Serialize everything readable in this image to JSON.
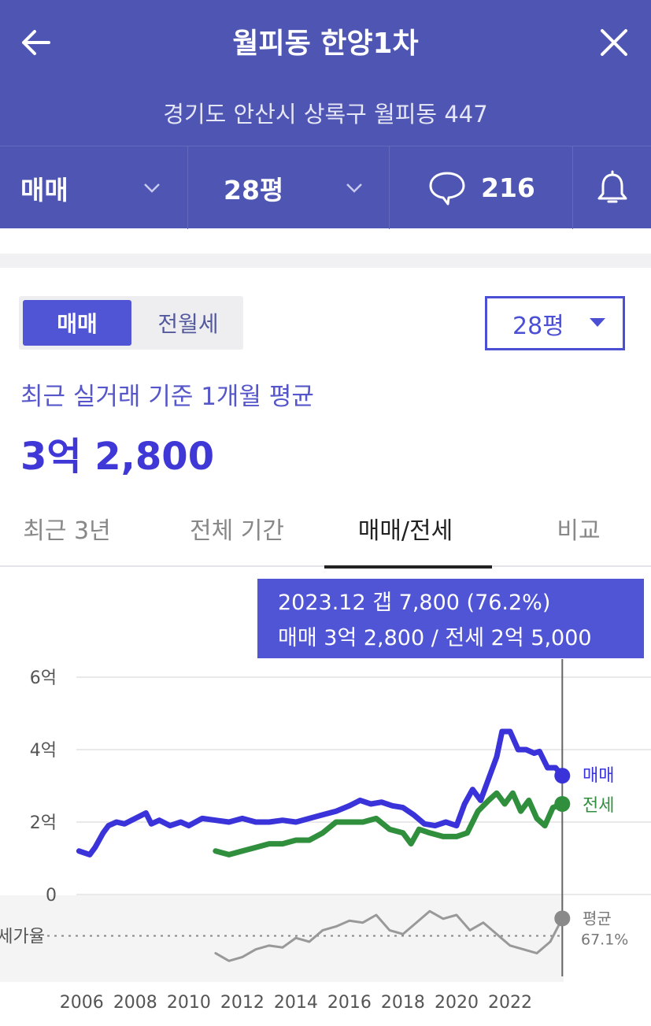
{
  "header": {
    "title": "월피동 한양1차",
    "address": "경기도 안산시 상록구 월피동 447",
    "back_icon": "arrow-left-icon",
    "close_icon": "close-icon"
  },
  "filters": {
    "deal_type": "매매",
    "size": "28평",
    "comment_count": "216",
    "comment_icon": "speech-bubble-icon",
    "alert_icon": "bell-icon"
  },
  "price_section": {
    "toggle": [
      "매매",
      "전월세"
    ],
    "toggle_selected": "매매",
    "size_select": "28평",
    "caption": "최근 실거래 기준 1개월 평균",
    "price": "3억 2,800"
  },
  "tabs": [
    {
      "label": "최근 3년",
      "active": false
    },
    {
      "label": "전체 기간",
      "active": false
    },
    {
      "label": "매매/전세",
      "active": true
    },
    {
      "label": "비교",
      "active": false
    }
  ],
  "tooltip": {
    "line1": "2023.12  갭 7,800 (76.2%)",
    "line2": "매매 3억 2,800 / 전세 2억 5,000"
  },
  "colors": {
    "header_bg": "#4f55b2",
    "accent": "#5055d6",
    "sale": "#3a33d9",
    "jeonse": "#2f8f3c",
    "ratio": "#999999"
  },
  "chart_data": {
    "type": "line",
    "y_ticks": [
      "6억",
      "4억",
      "2억",
      "0"
    ],
    "ylim": [
      0,
      6
    ],
    "x_ticks": [
      "2006",
      "2008",
      "2010",
      "2012",
      "2014",
      "2016",
      "2018",
      "2020",
      "2022"
    ],
    "xlim": [
      2005.8,
      2024.0
    ],
    "series": [
      {
        "name": "매매",
        "color": "#3a33d9",
        "x": [
          2005.9,
          2006.3,
          2006.5,
          2006.8,
          2007.0,
          2007.3,
          2007.6,
          2008.0,
          2008.4,
          2008.6,
          2008.9,
          2009.3,
          2009.7,
          2010.0,
          2010.5,
          2011.0,
          2011.5,
          2012.0,
          2012.5,
          2013.0,
          2013.5,
          2014.0,
          2014.5,
          2015.0,
          2015.5,
          2016.0,
          2016.4,
          2016.8,
          2017.2,
          2017.6,
          2018.0,
          2018.4,
          2018.8,
          2019.2,
          2019.6,
          2020.0,
          2020.3,
          2020.6,
          2020.9,
          2021.2,
          2021.5,
          2021.7,
          2022.0,
          2022.3,
          2022.6,
          2022.9,
          2023.1,
          2023.4,
          2023.7,
          2023.95
        ],
        "y": [
          1.2,
          1.1,
          1.3,
          1.7,
          1.9,
          2.0,
          1.95,
          2.1,
          2.25,
          1.95,
          2.05,
          1.9,
          2.0,
          1.9,
          2.1,
          2.05,
          2.0,
          2.1,
          2.0,
          2.0,
          2.05,
          2.0,
          2.1,
          2.2,
          2.3,
          2.45,
          2.6,
          2.5,
          2.55,
          2.45,
          2.4,
          2.2,
          1.95,
          1.9,
          2.0,
          1.9,
          2.5,
          2.9,
          2.6,
          3.2,
          3.8,
          4.5,
          4.5,
          4.0,
          4.0,
          3.9,
          3.95,
          3.5,
          3.5,
          3.28
        ]
      },
      {
        "name": "전세",
        "color": "#2f8f3c",
        "x": [
          2011.0,
          2011.5,
          2012.0,
          2012.5,
          2013.0,
          2013.5,
          2014.0,
          2014.5,
          2015.0,
          2015.5,
          2016.0,
          2016.5,
          2017.0,
          2017.5,
          2018.0,
          2018.3,
          2018.6,
          2019.0,
          2019.5,
          2020.0,
          2020.4,
          2020.8,
          2021.2,
          2021.5,
          2021.8,
          2022.1,
          2022.4,
          2022.7,
          2023.0,
          2023.3,
          2023.6,
          2023.95
        ],
        "y": [
          1.2,
          1.1,
          1.2,
          1.3,
          1.4,
          1.4,
          1.5,
          1.5,
          1.7,
          2.0,
          2.0,
          2.0,
          2.1,
          1.8,
          1.7,
          1.4,
          1.8,
          1.7,
          1.6,
          1.6,
          1.7,
          2.3,
          2.6,
          2.8,
          2.5,
          2.8,
          2.3,
          2.6,
          2.1,
          1.9,
          2.4,
          2.5
        ]
      },
      {
        "name": "전세가율",
        "color": "#999999",
        "x": [
          2011.0,
          2011.5,
          2012.0,
          2012.5,
          2013.0,
          2013.5,
          2014.0,
          2014.5,
          2015.0,
          2015.5,
          2016.0,
          2016.5,
          2017.0,
          2017.5,
          2018.0,
          2018.5,
          2019.0,
          2019.5,
          2020.0,
          2020.5,
          2021.0,
          2021.5,
          2022.0,
          2022.5,
          2023.0,
          2023.5,
          2023.95
        ],
        "y": [
          58,
          54,
          56,
          60,
          62,
          61,
          66,
          64,
          70,
          72,
          75,
          74,
          78,
          70,
          68,
          74,
          80,
          76,
          78,
          70,
          74,
          68,
          62,
          60,
          58,
          64,
          76.2
        ]
      }
    ],
    "ratio_axis_label": "전세가율",
    "ratio_average_label": "평균",
    "ratio_average_value": "67.1%",
    "ratio_average": 67.1,
    "ratio_range": [
      50,
      85
    ],
    "end_labels": [
      "매매",
      "전세"
    ],
    "highlight": {
      "x": 2023.95,
      "label": "2023.12",
      "sale": 3.28,
      "jeonse": 2.5
    }
  }
}
